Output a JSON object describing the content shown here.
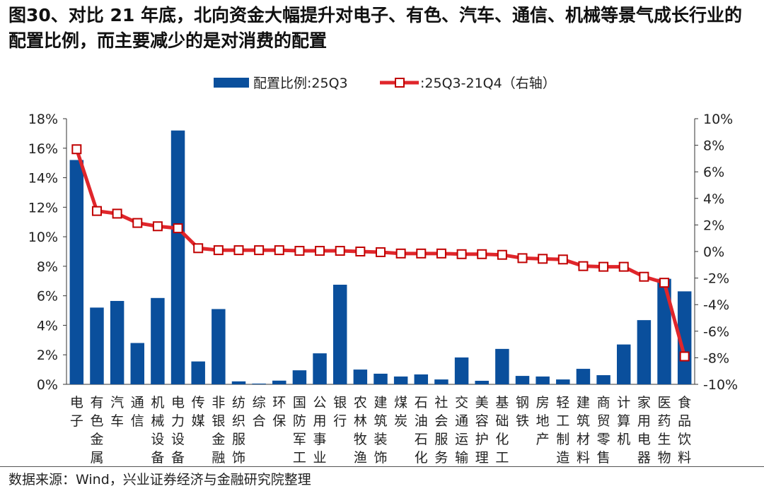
{
  "title": "图30、对比 21 年底，北向资金大幅提升对电子、有色、汽车、通信、机械等景气成长行业的配置比例，而主要减少的是对消费的配置",
  "source": "数据来源：Wind，兴业证券经济与金融研究院整理",
  "chart_data": {
    "type": "bar+line",
    "categories": [
      "电子",
      "有色金属",
      "汽车",
      "通信",
      "机械设备",
      "电力设备",
      "传媒",
      "非银金融",
      "纺织服饰",
      "综合",
      "环保",
      "国防军工",
      "公用事业",
      "银行",
      "农林牧渔",
      "建筑装饰",
      "煤炭",
      "石油石化",
      "社会服务",
      "交通运输",
      "美容护理",
      "基础化工",
      "钢铁",
      "房地产",
      "轻工制造",
      "建筑材料",
      "商贸零售",
      "计算机",
      "家用电器",
      "医药生物",
      "食品饮料"
    ],
    "series": [
      {
        "name": "配置比例:25Q3",
        "type": "bar",
        "axis": "left",
        "color": "#0a4f9c",
        "values": [
          15.2,
          5.2,
          5.65,
          2.8,
          5.85,
          17.2,
          1.55,
          5.1,
          0.2,
          0.05,
          0.25,
          0.95,
          2.1,
          6.75,
          1.0,
          0.72,
          0.53,
          0.67,
          0.33,
          1.82,
          0.24,
          2.4,
          0.57,
          0.53,
          0.33,
          1.05,
          0.62,
          2.7,
          4.35,
          7.15,
          6.3
        ]
      },
      {
        "name": ":25Q3-21Q4（右轴）",
        "type": "line",
        "axis": "right",
        "color": "#e0262b",
        "values": [
          7.7,
          3.05,
          2.85,
          2.15,
          1.9,
          1.75,
          0.25,
          0.1,
          0.1,
          0.1,
          0.1,
          0.05,
          0.05,
          0.05,
          0.0,
          -0.05,
          -0.15,
          -0.15,
          -0.15,
          -0.2,
          -0.2,
          -0.25,
          -0.5,
          -0.55,
          -0.6,
          -1.1,
          -1.15,
          -1.15,
          -1.9,
          -2.35,
          -7.9
        ]
      }
    ],
    "y_left": {
      "range": [
        0,
        18
      ],
      "ticks": [
        "0%",
        "2%",
        "4%",
        "6%",
        "8%",
        "10%",
        "12%",
        "14%",
        "16%",
        "18%"
      ]
    },
    "y_right": {
      "range": [
        -10,
        10
      ],
      "ticks": [
        "-10%",
        "-8%",
        "-6%",
        "-4%",
        "-2%",
        "0%",
        "2%",
        "4%",
        "6%",
        "8%",
        "10%"
      ]
    },
    "grid": false,
    "legend": "top"
  }
}
